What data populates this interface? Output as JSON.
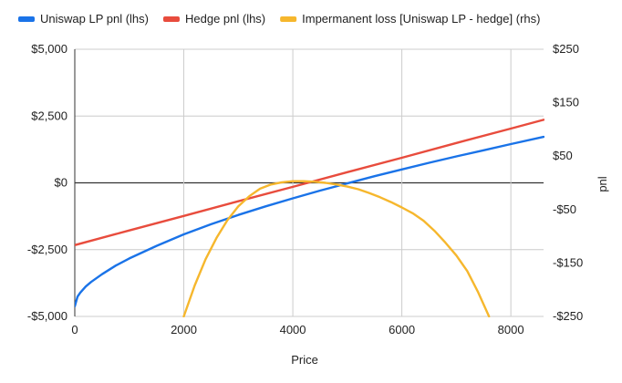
{
  "chart_data": {
    "type": "line",
    "title": "",
    "xlabel": "Price",
    "ylabel_left": "",
    "ylabel_right": "pnl",
    "xlim": [
      0,
      8600
    ],
    "ylim_left": [
      -5000,
      5000
    ],
    "ylim_right": [
      -250,
      250
    ],
    "x_ticks": [
      0,
      2000,
      4000,
      6000,
      8000
    ],
    "x_tick_labels": [
      "0",
      "2000",
      "4000",
      "6000",
      "8000"
    ],
    "y_left_ticks": [
      -5000,
      -2500,
      0,
      2500,
      5000
    ],
    "y_left_tick_labels": [
      "-$5,000",
      "-$2,500",
      "$0",
      "$2,500",
      "$5,000"
    ],
    "y_right_ticks": [
      -250,
      -150,
      -50,
      50,
      150,
      250
    ],
    "y_right_tick_labels": [
      "-$250",
      "-$150",
      "-$50",
      "$50",
      "$150",
      "$250"
    ],
    "grid": true,
    "legend_position": "top",
    "series": [
      {
        "name": "Uniswap LP pnl (lhs)",
        "axis": "left",
        "color": "#1a73e8",
        "x": [
          0,
          50,
          100,
          200,
          300,
          500,
          750,
          1000,
          1500,
          2000,
          2500,
          3000,
          3500,
          4000,
          4500,
          5000,
          5500,
          6000,
          6500,
          7000,
          7500,
          8000,
          8600
        ],
        "y": [
          -4620,
          -4260,
          -4110,
          -3880,
          -3710,
          -3420,
          -3100,
          -2830,
          -2360,
          -1930,
          -1550,
          -1200,
          -880,
          -580,
          -290,
          -20,
          250,
          500,
          750,
          990,
          1220,
          1450,
          1720
        ]
      },
      {
        "name": "Hedge pnl (lhs)",
        "axis": "left",
        "color": "#e84c3d",
        "x": [
          0,
          1000,
          2000,
          3000,
          4000,
          5000,
          6000,
          7000,
          8000,
          8600
        ],
        "y": [
          -2330,
          -1780,
          -1240,
          -690,
          -150,
          400,
          940,
          1490,
          2030,
          2360
        ]
      },
      {
        "name": "Impermanent loss [Uniswap LP - hedge] (rhs)",
        "axis": "right",
        "color": "#f6b72d",
        "x": [
          2000,
          2200,
          2400,
          2600,
          2800,
          3000,
          3200,
          3400,
          3600,
          3800,
          4000,
          4200,
          4400,
          4600,
          4800,
          5000,
          5200,
          5400,
          5600,
          5800,
          6000,
          6200,
          6400,
          6600,
          6800,
          7000,
          7200,
          7400,
          7600
        ],
        "y": [
          -250,
          -192,
          -143,
          -103,
          -70,
          -44,
          -25,
          -11,
          -3,
          1,
          3,
          3,
          2,
          0,
          -3,
          -7,
          -12,
          -19,
          -27,
          -36,
          -46,
          -57,
          -71,
          -90,
          -112,
          -136,
          -165,
          -205,
          -250
        ]
      }
    ]
  }
}
